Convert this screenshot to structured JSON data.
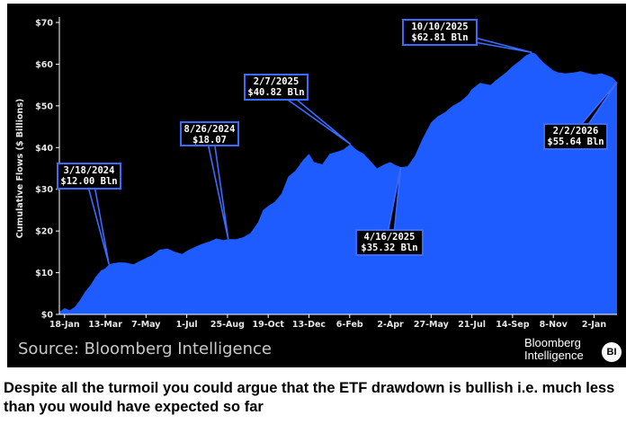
{
  "chart_data": {
    "type": "area",
    "ylabel": "Cumulative Flows ($ Billions)",
    "yticks": [
      "$0",
      "$10",
      "$20",
      "$30",
      "$40",
      "$50",
      "$60",
      "$70"
    ],
    "ylim": [
      0,
      70
    ],
    "xticks": [
      "18-Jan",
      "13-Mar",
      "7-May",
      "1-Jul",
      "25-Aug",
      "19-Oct",
      "13-Dec",
      "6-Feb",
      "2-Apr",
      "27-May",
      "21-Jul",
      "14-Sep",
      "8-Nov",
      "2-Jan"
    ],
    "grid": false,
    "fill_color": "#1f5cff",
    "series": [
      {
        "x": [
          "2024-01-11",
          "2024-01-18",
          "2024-01-25",
          "2024-02-01",
          "2024-02-08",
          "2024-02-15",
          "2024-02-22",
          "2024-02-29",
          "2024-03-07",
          "2024-03-13",
          "2024-03-18",
          "2024-03-25",
          "2024-04-01",
          "2024-04-10",
          "2024-04-20",
          "2024-05-01",
          "2024-05-07",
          "2024-05-15",
          "2024-05-25",
          "2024-06-05",
          "2024-06-15",
          "2024-06-25",
          "2024-07-01",
          "2024-07-10",
          "2024-07-20",
          "2024-08-01",
          "2024-08-10",
          "2024-08-20",
          "2024-08-26",
          "2024-09-05",
          "2024-09-15",
          "2024-09-25",
          "2024-10-05",
          "2024-10-12",
          "2024-10-19",
          "2024-10-28",
          "2024-11-06",
          "2024-11-15",
          "2024-11-25",
          "2024-12-05",
          "2024-12-13",
          "2024-12-20",
          "2024-12-31",
          "2025-01-10",
          "2025-01-20",
          "2025-01-28",
          "2025-02-07",
          "2025-02-15",
          "2025-02-25",
          "2025-03-05",
          "2025-03-15",
          "2025-03-25",
          "2025-04-02",
          "2025-04-09",
          "2025-04-16",
          "2025-04-25",
          "2025-05-05",
          "2025-05-15",
          "2025-05-27",
          "2025-06-05",
          "2025-06-15",
          "2025-06-25",
          "2025-07-05",
          "2025-07-15",
          "2025-07-21",
          "2025-08-01",
          "2025-08-15",
          "2025-08-25",
          "2025-09-05",
          "2025-09-14",
          "2025-09-25",
          "2025-10-01",
          "2025-10-10",
          "2025-10-15",
          "2025-10-20",
          "2025-10-25",
          "2025-11-01",
          "2025-11-08",
          "2025-11-15",
          "2025-11-25",
          "2025-12-05",
          "2025-12-15",
          "2025-12-25",
          "2026-01-02",
          "2026-01-12",
          "2026-01-20",
          "2026-01-27",
          "2026-02-02"
        ],
        "values": [
          0.6,
          1.5,
          1.0,
          1.8,
          3.5,
          5.5,
          7.0,
          9.0,
          10.5,
          11.0,
          12.0,
          12.3,
          12.5,
          12.4,
          12.0,
          13.0,
          13.5,
          14.2,
          15.5,
          15.8,
          15.0,
          14.5,
          15.2,
          16.0,
          16.8,
          17.5,
          18.2,
          17.8,
          18.07,
          18.0,
          18.5,
          19.5,
          22.0,
          25.0,
          26.0,
          27.0,
          29.0,
          33.0,
          34.5,
          37.0,
          38.5,
          36.5,
          36.0,
          38.5,
          39.0,
          39.5,
          40.82,
          39.5,
          38.5,
          37.0,
          35.0,
          36.0,
          36.5,
          35.8,
          35.32,
          35.5,
          38.0,
          42.0,
          46.0,
          47.5,
          48.5,
          50.0,
          51.0,
          52.5,
          54.0,
          55.5,
          55.0,
          56.5,
          58.0,
          59.5,
          61.0,
          62.0,
          62.81,
          62.5,
          61.5,
          60.5,
          59.5,
          58.5,
          58.0,
          57.8,
          58.0,
          58.3,
          57.8,
          57.5,
          57.8,
          57.3,
          56.8,
          55.64
        ]
      }
    ]
  },
  "annotations": [
    {
      "date": "2024-03-18",
      "value": 12.0,
      "line1": "3/18/2024",
      "line2": "$12.00 Bln"
    },
    {
      "date": "2024-08-26",
      "value": 18.07,
      "line1": "8/26/2024",
      "line2": "$18.07"
    },
    {
      "date": "2025-02-07",
      "value": 40.82,
      "line1": "2/7/2025",
      "line2": "$40.82 Bln"
    },
    {
      "date": "2025-04-16",
      "value": 35.32,
      "line1": "4/16/2025",
      "line2": "$35.32 Bln"
    },
    {
      "date": "2025-10-10",
      "value": 62.81,
      "line1": "10/10/2025",
      "line2": "$62.81 Bln"
    },
    {
      "date": "2026-02-02",
      "value": 55.64,
      "line1": "2/2/2026",
      "line2": "$55.64 Bln"
    }
  ],
  "source": "Source: Bloomberg Intelligence",
  "brand": {
    "line1": "Bloomberg",
    "line2": "Intelligence",
    "logo": "BI"
  },
  "caption": "Despite all the turmoil you could argue that the ETF drawdown is bullish i.e. much less than you would have expected so far"
}
